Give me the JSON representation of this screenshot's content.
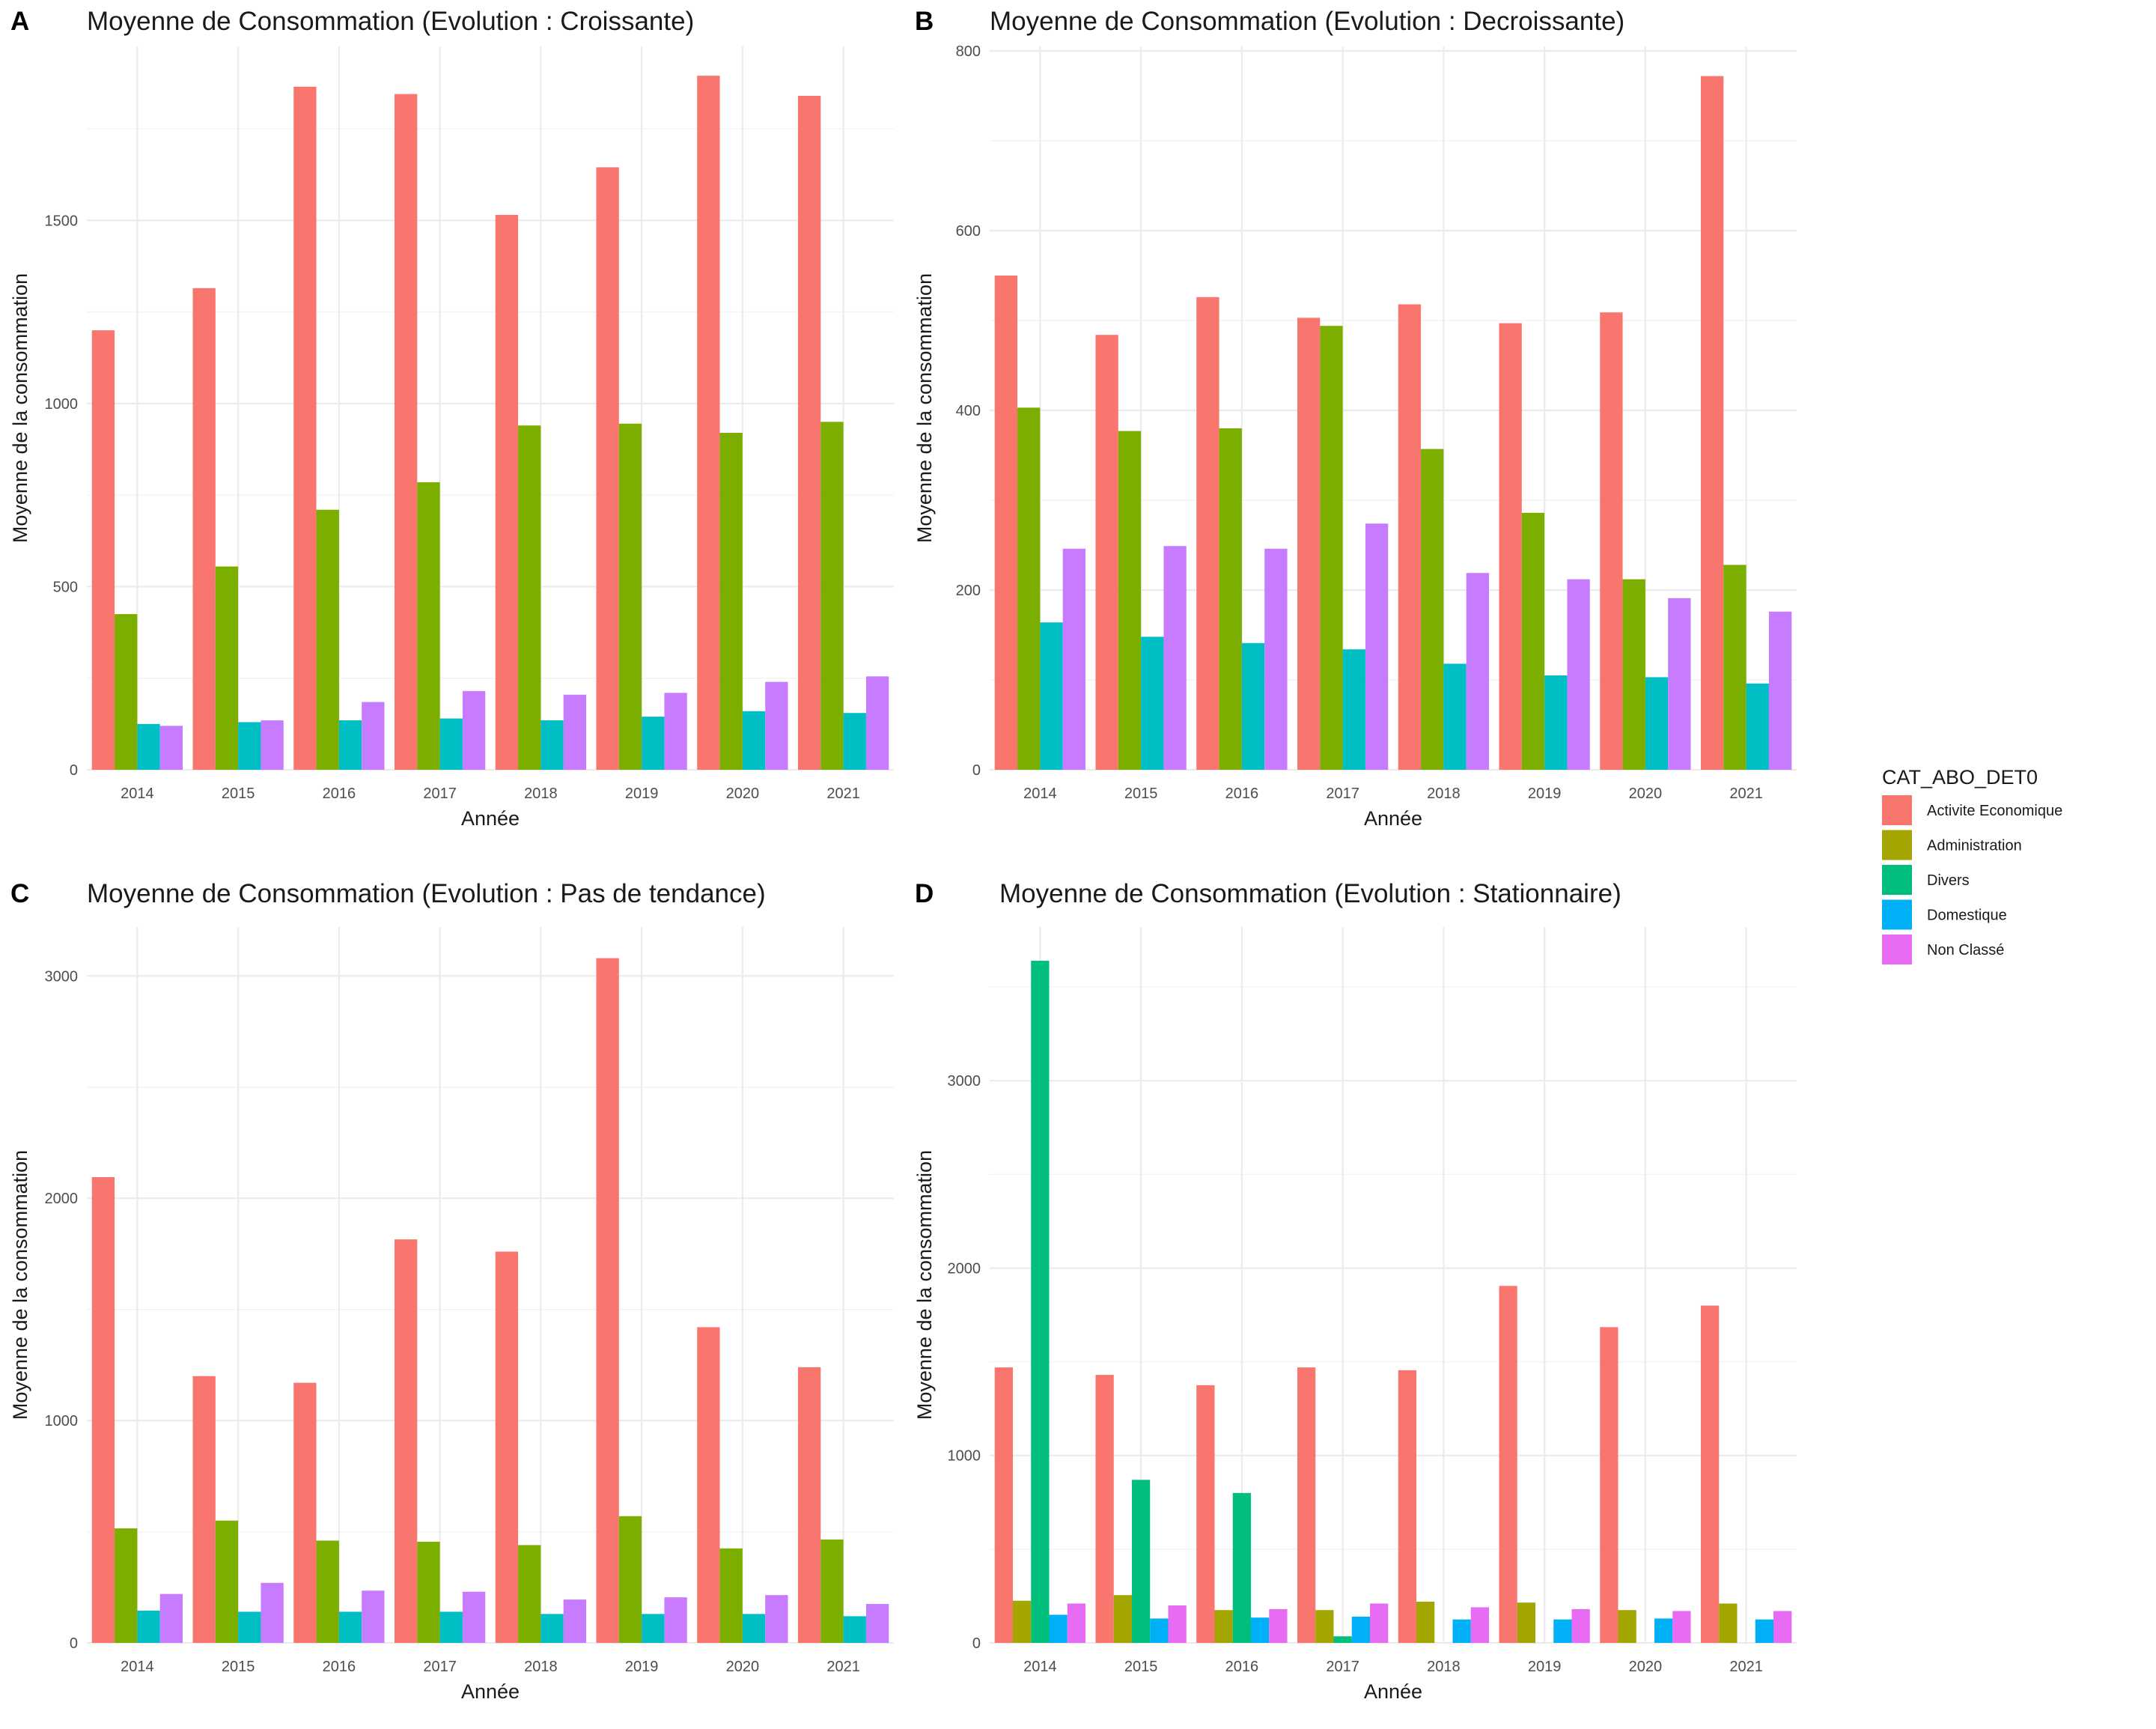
{
  "legend": {
    "title": "CAT_ABO_DET0",
    "position": "right",
    "items": [
      {
        "label": "Activite Economique",
        "color": "#F8766D"
      },
      {
        "label": "Administration",
        "color": "#A3A500"
      },
      {
        "label": "Divers",
        "color": "#00BF7D"
      },
      {
        "label": "Domestique",
        "color": "#00B0F6"
      },
      {
        "label": "Non Classé",
        "color": "#E76BF3"
      }
    ]
  },
  "chart_data": [
    {
      "tag": "A",
      "type": "bar",
      "title": "Moyenne de Consommation (Evolution : Croissante)",
      "xlabel": "Année",
      "ylabel": "Moyenne de la consommation",
      "categories": [
        "2014",
        "2015",
        "2016",
        "2017",
        "2018",
        "2019",
        "2020",
        "2021"
      ],
      "ylim": [
        0,
        1975
      ],
      "yticks": [
        0,
        500,
        1000,
        1500
      ],
      "grid": true,
      "series": [
        {
          "name": "Activite Economique",
          "color": "#F8766D",
          "values": [
            1200,
            1315,
            1865,
            1845,
            1515,
            1645,
            1895,
            1840
          ]
        },
        {
          "name": "Administration",
          "color": "#7CAE00",
          "values": [
            425,
            555,
            710,
            785,
            940,
            945,
            920,
            950
          ]
        },
        {
          "name": "Domestique",
          "color": "#00BFC4",
          "values": [
            125,
            130,
            135,
            140,
            135,
            145,
            160,
            155
          ]
        },
        {
          "name": "Non Classé",
          "color": "#C77CFF",
          "values": [
            120,
            135,
            185,
            215,
            205,
            210,
            240,
            255
          ]
        }
      ]
    },
    {
      "tag": "B",
      "type": "bar",
      "title": "Moyenne de Consommation (Evolution : Decroissante)",
      "xlabel": "Année",
      "ylabel": "Moyenne de la consommation",
      "categories": [
        "2014",
        "2015",
        "2016",
        "2017",
        "2018",
        "2019",
        "2020",
        "2021"
      ],
      "ylim": [
        0,
        805
      ],
      "yticks": [
        0,
        200,
        400,
        600,
        800
      ],
      "grid": true,
      "series": [
        {
          "name": "Activite Economique",
          "color": "#F8766D",
          "values": [
            550,
            484,
            526,
            503,
            518,
            497,
            509,
            772
          ]
        },
        {
          "name": "Administration",
          "color": "#7CAE00",
          "values": [
            403,
            377,
            380,
            494,
            357,
            286,
            212,
            228
          ]
        },
        {
          "name": "Domestique",
          "color": "#00BFC4",
          "values": [
            164,
            148,
            141,
            134,
            118,
            105,
            103,
            96
          ]
        },
        {
          "name": "Non Classé",
          "color": "#C77CFF",
          "values": [
            246,
            249,
            246,
            274,
            219,
            212,
            191,
            176
          ]
        }
      ]
    },
    {
      "tag": "C",
      "type": "bar",
      "title": "Moyenne de Consommation (Evolution : Pas de tendance)",
      "xlabel": "Année",
      "ylabel": "Moyenne de la consommation",
      "categories": [
        "2014",
        "2015",
        "2016",
        "2017",
        "2018",
        "2019",
        "2020",
        "2021"
      ],
      "ylim": [
        0,
        3220
      ],
      "yticks": [
        0,
        1000,
        2000,
        3000
      ],
      "grid": true,
      "series": [
        {
          "name": "Activite Economique",
          "color": "#F8766D",
          "values": [
            2095,
            1200,
            1170,
            1815,
            1760,
            3080,
            1420,
            1240
          ]
        },
        {
          "name": "Administration",
          "color": "#7CAE00",
          "values": [
            515,
            550,
            460,
            455,
            440,
            570,
            425,
            465
          ]
        },
        {
          "name": "Domestique",
          "color": "#00BFC4",
          "values": [
            145,
            140,
            140,
            140,
            130,
            130,
            130,
            120
          ]
        },
        {
          "name": "Non Classé",
          "color": "#C77CFF",
          "values": [
            220,
            270,
            235,
            230,
            195,
            205,
            215,
            175
          ]
        }
      ]
    },
    {
      "tag": "D",
      "type": "bar",
      "title": "Moyenne de Consommation (Evolution : Stationnaire)",
      "xlabel": "Année",
      "ylabel": "Moyenne de la consommation",
      "categories": [
        "2014",
        "2015",
        "2016",
        "2017",
        "2018",
        "2019",
        "2020",
        "2021"
      ],
      "ylim": [
        0,
        3820
      ],
      "yticks": [
        0,
        1000,
        2000,
        3000
      ],
      "grid": true,
      "series": [
        {
          "name": "Activite Economique",
          "color": "#F8766D",
          "values": [
            1470,
            1430,
            1375,
            1470,
            1455,
            1905,
            1685,
            1800
          ]
        },
        {
          "name": "Administration",
          "color": "#A3A500",
          "values": [
            225,
            255,
            175,
            175,
            220,
            215,
            175,
            210
          ]
        },
        {
          "name": "Divers",
          "color": "#00BF7D",
          "values": [
            3640,
            870,
            800,
            35,
            null,
            null,
            null,
            null
          ]
        },
        {
          "name": "Domestique",
          "color": "#00B0F6",
          "values": [
            150,
            130,
            135,
            140,
            125,
            125,
            130,
            125
          ]
        },
        {
          "name": "Non Classé",
          "color": "#E76BF3",
          "values": [
            210,
            200,
            180,
            210,
            190,
            180,
            170,
            170
          ]
        }
      ]
    }
  ]
}
